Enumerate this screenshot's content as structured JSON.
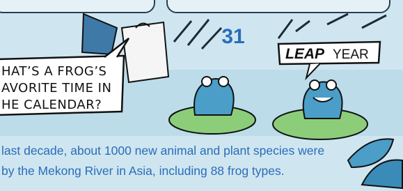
{
  "bubble": {
    "lines": [
      "HAT’S A FROG’S",
      "AVORITE TIME IN",
      "HE CALENDAR?"
    ]
  },
  "calendar": {
    "day": "31"
  },
  "sign": {
    "leap": "LEAP",
    "year": "YEAR"
  },
  "caption": {
    "lines": [
      "last decade, about 1000 new animal and plant species were",
      "by the Mekong River in Asia, including 88 frog types."
    ]
  }
}
